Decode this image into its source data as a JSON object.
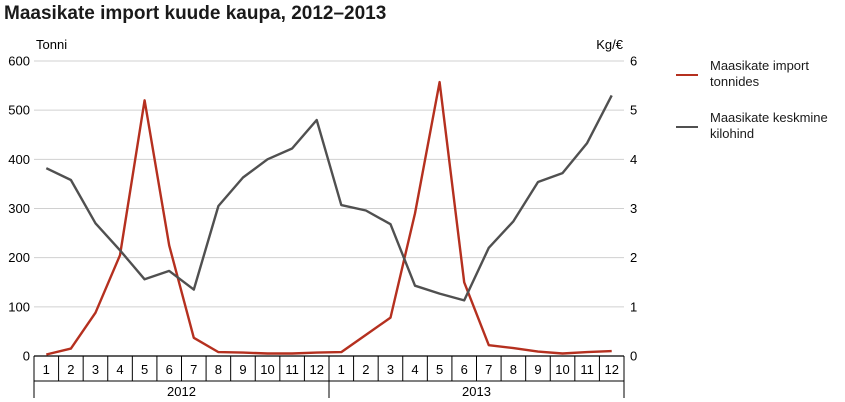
{
  "chart_data": {
    "type": "line",
    "title": "Maasikate import kuude kaupa, 2012–2013",
    "ylabel": "Tonni",
    "y2label": "Kg/€",
    "ylim": [
      0,
      600
    ],
    "y2lim": [
      0,
      6
    ],
    "yticks": [
      "0",
      "100",
      "200",
      "300",
      "400",
      "500",
      "600"
    ],
    "y2ticks": [
      "0",
      "1",
      "2",
      "3",
      "4",
      "5",
      "6"
    ],
    "categories": [
      "1",
      "2",
      "3",
      "4",
      "5",
      "6",
      "7",
      "8",
      "9",
      "10",
      "11",
      "12",
      "1",
      "2",
      "3",
      "4",
      "5",
      "6",
      "7",
      "8",
      "9",
      "10",
      "11",
      "12"
    ],
    "year_groups": [
      {
        "label": "2012",
        "start": 0,
        "end": 11
      },
      {
        "label": "2013",
        "start": 12,
        "end": 23
      }
    ],
    "grid": true,
    "legend_position": "right",
    "series": [
      {
        "name": "Maasikate import tonnides",
        "axis": "left",
        "color": "#b5301f",
        "values": [
          3,
          15,
          88,
          205,
          520,
          225,
          37,
          8,
          7,
          5,
          5,
          7,
          8,
          43,
          78,
          290,
          557,
          150,
          22,
          16,
          9,
          5,
          8,
          10
        ]
      },
      {
        "name": "Maasikate keskmine kilohind",
        "axis": "right",
        "color": "#505050",
        "values": [
          3.82,
          3.58,
          2.7,
          2.15,
          1.56,
          1.73,
          1.35,
          3.05,
          3.63,
          4.0,
          4.22,
          4.8,
          3.07,
          2.96,
          2.68,
          1.43,
          1.27,
          1.13,
          2.2,
          2.74,
          3.54,
          3.72,
          4.33,
          5.3
        ]
      }
    ]
  }
}
